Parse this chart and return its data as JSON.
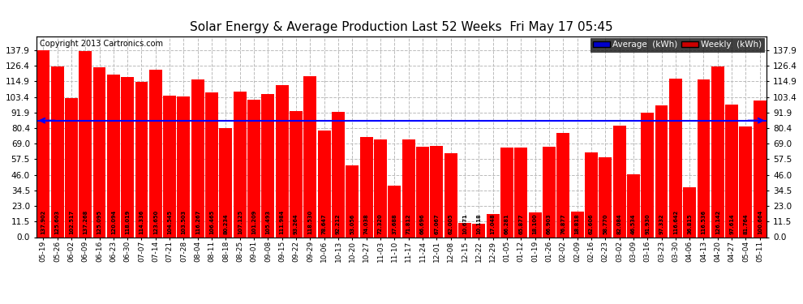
{
  "title": "Solar Energy & Average Production Last 52 Weeks  Fri May 17 05:45",
  "copyright": "Copyright 2013 Cartronics.com",
  "average_value": 86.0,
  "bar_color": "#ff0000",
  "average_line_color": "#0000ff",
  "background_color": "#ffffff",
  "grid_color": "#bbbbbb",
  "legend_avg_bg": "#0000cc",
  "legend_weekly_bg": "#cc0000",
  "ylim": [
    0,
    148
  ],
  "yticks": [
    0.0,
    11.5,
    23.0,
    34.5,
    46.0,
    57.5,
    69.0,
    80.4,
    91.9,
    103.4,
    114.9,
    126.4,
    137.9
  ],
  "categories": [
    "05-19",
    "05-26",
    "06-02",
    "06-09",
    "06-16",
    "06-23",
    "06-30",
    "07-07",
    "07-14",
    "07-21",
    "07-28",
    "08-04",
    "08-11",
    "08-18",
    "08-25",
    "09-01",
    "09-08",
    "09-15",
    "09-22",
    "09-29",
    "10-06",
    "10-13",
    "10-20",
    "10-27",
    "11-03",
    "11-10",
    "11-17",
    "11-24",
    "12-01",
    "12-08",
    "12-15",
    "12-22",
    "12-29",
    "01-05",
    "01-12",
    "01-19",
    "01-26",
    "02-02",
    "02-09",
    "02-16",
    "02-23",
    "03-02",
    "03-09",
    "03-16",
    "03-23",
    "03-30",
    "04-06",
    "04-13",
    "04-20",
    "04-27",
    "05-04",
    "05-11"
  ],
  "values": [
    137.902,
    125.603,
    102.517,
    137.268,
    125.095,
    120.094,
    118.019,
    114.336,
    123.65,
    104.545,
    103.503,
    116.267,
    106.465,
    80.234,
    107.125,
    101.209,
    105.493,
    111.984,
    93.264,
    118.53,
    78.647,
    92.212,
    53.056,
    74.038,
    72.32,
    37.688,
    71.812,
    66.696,
    67.067,
    62.005,
    10.671,
    10.118,
    17.048,
    66.281,
    65.877,
    18.1,
    66.903,
    76.877,
    18.818,
    62.606,
    58.77,
    82.084,
    46.534,
    91.93,
    97.332,
    116.642,
    36.815,
    116.536,
    126.142,
    97.614,
    81.764,
    100.664
  ],
  "value_labels": [
    "137.902",
    "125.603",
    "102.517",
    "137.268",
    "125.095",
    "120.094",
    "118.019",
    "114.336",
    "123.650",
    "104.545",
    "103.503",
    "116.267",
    "106.465",
    "80.234",
    "107.125",
    "101.209",
    "105.493",
    "111.984",
    "93.264",
    "118.530",
    "78.647",
    "92.212",
    "53.056",
    "74.038",
    "72.320",
    "37.688",
    "71.812",
    "66.696",
    "67.067",
    "62.005",
    "10.671",
    "10.118",
    "17.048",
    "66.281",
    "65.877",
    "18.100",
    "66.903",
    "76.877",
    "18.818",
    "62.606",
    "58.770",
    "82.084",
    "46.534",
    "91.930",
    "97.332",
    "116.642",
    "36.815",
    "116.536",
    "126.142",
    "97.614",
    "81.764",
    "100.664"
  ]
}
